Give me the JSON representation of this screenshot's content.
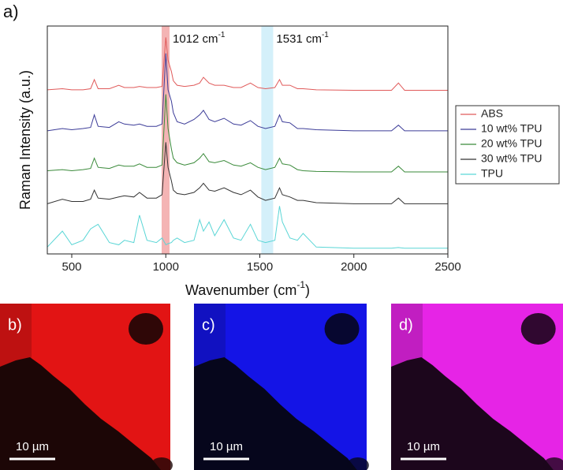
{
  "chart_data": {
    "type": "line",
    "panel_label": "a)",
    "ylabel": "Raman Intensity (a.u.)",
    "xlabel": {
      "text": "Wavenumber (cm",
      "sup": "-1",
      "end": ")"
    },
    "xlim": [
      370,
      2500
    ],
    "ylim": [
      0,
      100
    ],
    "xticks": [
      500,
      1000,
      1500,
      2000,
      2500
    ],
    "grid": false,
    "legend": "outside-right",
    "bands": [
      {
        "x": [
          978,
          1020
        ],
        "color": "#f4b4b4",
        "label": "1012 cm",
        "sup": "-1"
      },
      {
        "x": [
          1508,
          1571
        ],
        "color": "#d4f0fa",
        "label": "1531 cm",
        "sup": "-1"
      }
    ],
    "x": [
      370,
      450,
      500,
      560,
      600,
      620,
      640,
      700,
      750,
      780,
      830,
      860,
      900,
      950,
      980,
      1000,
      1012,
      1030,
      1040,
      1060,
      1100,
      1150,
      1180,
      1200,
      1230,
      1260,
      1310,
      1360,
      1400,
      1450,
      1490,
      1530,
      1580,
      1605,
      1620,
      1660,
      1700,
      1730,
      1800,
      2000,
      2200,
      2237,
      2270,
      2500
    ],
    "series": [
      {
        "name": "ABS",
        "color": "#e05a5a",
        "values": [
          72,
          72.5,
          72,
          72,
          72.5,
          76.5,
          72.5,
          72.5,
          74,
          73,
          73,
          73.5,
          73,
          73,
          73.5,
          95,
          85,
          80,
          76,
          74,
          73.5,
          74,
          75,
          77.5,
          75,
          74,
          74,
          73,
          73,
          75,
          73,
          72.5,
          73,
          76.5,
          74,
          74,
          72.5,
          72.5,
          72,
          71.8,
          71.8,
          75,
          71.8,
          71.8
        ]
      },
      {
        "name": "10 wt% TPU",
        "color": "#3c3c98",
        "values": [
          54,
          55,
          54.5,
          55,
          55.5,
          61,
          56,
          55.5,
          58,
          57,
          56.5,
          57,
          56,
          56,
          57,
          88,
          72,
          67,
          62,
          58,
          57,
          59,
          61,
          63,
          59,
          58,
          59.5,
          57,
          56.5,
          58.5,
          56,
          55,
          56,
          61,
          58,
          57.5,
          55,
          55,
          54.5,
          54,
          54,
          56.5,
          54,
          54
        ]
      },
      {
        "name": "20 wt% TPU",
        "color": "#3a8a3a",
        "values": [
          36.5,
          37,
          36.5,
          37,
          37.5,
          42,
          38,
          37.5,
          39,
          38.5,
          38.5,
          39.5,
          38,
          38,
          39,
          70,
          55,
          46,
          42,
          40,
          39,
          40,
          42,
          44,
          40.5,
          40,
          41,
          39,
          38.5,
          40,
          38,
          37,
          38,
          42,
          39.5,
          39,
          37,
          36.5,
          36.2,
          36,
          36,
          38.5,
          36,
          36
        ]
      },
      {
        "name": "30 wt% TPU",
        "color": "#333333",
        "values": [
          22,
          24,
          23,
          23,
          24,
          28,
          24.5,
          24,
          25,
          25.5,
          25,
          27,
          24.5,
          24.5,
          26,
          49,
          38,
          32,
          28,
          26.5,
          26,
          27,
          29,
          31,
          28,
          27.5,
          29,
          27,
          26,
          28,
          25,
          23.5,
          24.5,
          29,
          26,
          25,
          23.5,
          23.5,
          22.5,
          22,
          22,
          24.5,
          22,
          22
        ]
      },
      {
        "name": "TPU",
        "color": "#5ad6d6",
        "values": [
          3,
          10,
          4,
          6,
          11,
          12,
          13,
          5,
          4,
          6,
          5,
          17,
          6,
          5,
          7,
          4,
          4.5,
          5,
          6,
          7,
          5,
          6,
          15,
          10,
          14,
          8,
          15,
          7,
          6,
          13,
          6,
          5,
          6,
          21,
          14,
          7,
          6,
          9,
          3,
          2.5,
          2.5,
          2.8,
          2.5,
          2.5
        ]
      }
    ]
  },
  "panels": [
    {
      "label": "b)",
      "scale_bar": "10 µm",
      "color": "#e21414",
      "dark": "#1c0606"
    },
    {
      "label": "c)",
      "scale_bar": "10 µm",
      "color": "#1414e6",
      "dark": "#06061c"
    },
    {
      "label": "d)",
      "scale_bar": "10 µm",
      "color": "#e624e6",
      "dark": "#1c061c"
    }
  ]
}
